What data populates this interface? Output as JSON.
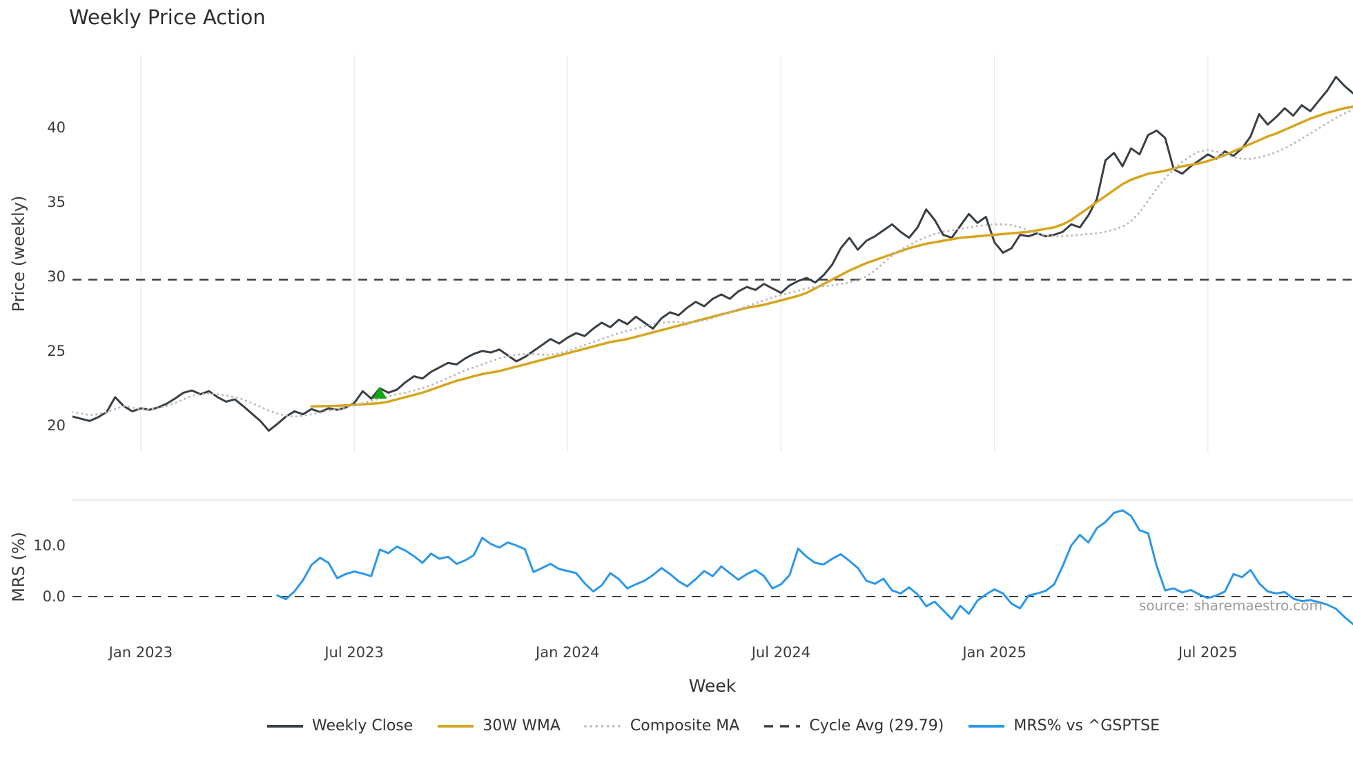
{
  "source_note": "source: sharemaestro.com",
  "chart_data": {
    "type": "line",
    "title": "Weekly Price Action",
    "xlabel": "Week",
    "x_unit": "decimal_year",
    "xlim": [
      2022.84,
      2025.84
    ],
    "grid": true,
    "grid_color": "#ececec",
    "panel_border_color": "#d9d9d9",
    "legend_position": "bottom-center",
    "xticks": [
      {
        "value": 2023.0,
        "label": "Jan 2023"
      },
      {
        "value": 2023.5,
        "label": "Jul 2023"
      },
      {
        "value": 2024.0,
        "label": "Jan 2024"
      },
      {
        "value": 2024.5,
        "label": "Jul 2024"
      },
      {
        "value": 2025.0,
        "label": "Jan 2025"
      },
      {
        "value": 2025.5,
        "label": "Jul 2025"
      }
    ],
    "panels": [
      {
        "id": "price",
        "ylabel": "Price (weekly)",
        "ylim": [
          18.19,
          44.86
        ],
        "yticks": [
          {
            "value": 20,
            "label": "20"
          },
          {
            "value": 25,
            "label": "25"
          },
          {
            "value": 30,
            "label": "30"
          },
          {
            "value": 35,
            "label": "35"
          },
          {
            "value": 40,
            "label": "40"
          }
        ],
        "grid_vertical": true,
        "hlines": [
          {
            "name": "Cycle Avg (29.79)",
            "value": 29.79,
            "color": "#3d3d3d",
            "style": "dashed",
            "width": 2.5
          }
        ],
        "markers": [
          {
            "type": "triangle-up",
            "x": 2023.56,
            "y": 22.15,
            "color": "#12a812",
            "size": 20,
            "meaning": "buy-signal"
          }
        ],
        "series": [
          {
            "name": "Weekly Close",
            "color": "#383f45",
            "style": "solid",
            "width": 3,
            "x0": 2022.84,
            "dx": 0.02,
            "values": [
              20.6,
              20.45,
              20.3,
              20.55,
              20.9,
              21.9,
              21.3,
              20.95,
              21.15,
              21.05,
              21.2,
              21.45,
              21.8,
              22.2,
              22.35,
              22.1,
              22.3,
              21.9,
              21.6,
              21.75,
              21.3,
              20.8,
              20.3,
              19.65,
              20.1,
              20.6,
              20.95,
              20.75,
              21.1,
              20.9,
              21.15,
              21.05,
              21.2,
              21.5,
              22.3,
              21.8,
              22.5,
              22.2,
              22.4,
              22.9,
              23.3,
              23.15,
              23.6,
              23.9,
              24.2,
              24.1,
              24.5,
              24.8,
              25.0,
              24.9,
              25.1,
              24.7,
              24.3,
              24.6,
              25.0,
              25.4,
              25.8,
              25.5,
              25.9,
              26.2,
              26.0,
              26.5,
              26.9,
              26.6,
              27.1,
              26.8,
              27.3,
              26.9,
              26.5,
              27.2,
              27.6,
              27.4,
              27.9,
              28.3,
              28.0,
              28.5,
              28.8,
              28.5,
              29.0,
              29.3,
              29.1,
              29.5,
              29.2,
              28.9,
              29.4,
              29.7,
              29.9,
              29.6,
              30.1,
              30.8,
              31.9,
              32.6,
              31.8,
              32.4,
              32.7,
              33.1,
              33.5,
              33.0,
              32.6,
              33.3,
              34.5,
              33.8,
              32.8,
              32.6,
              33.4,
              34.2,
              33.6,
              34.0,
              32.3,
              31.6,
              31.9,
              32.8,
              32.7,
              32.9,
              32.7,
              32.8,
              33.0,
              33.5,
              33.3,
              34.1,
              35.2,
              37.8,
              38.3,
              37.4,
              38.6,
              38.2,
              39.5,
              39.8,
              39.3,
              37.2,
              36.9,
              37.4,
              37.8,
              38.2,
              37.9,
              38.4,
              38.1,
              38.6,
              39.4,
              40.9,
              40.2,
              40.7,
              41.3,
              40.8,
              41.5,
              41.1,
              41.8,
              42.5,
              43.4,
              42.8,
              42.3,
              42.6,
              41.9,
              42.2,
              41.6
            ]
          },
          {
            "name": "30W WMA",
            "color": "#d6a51d",
            "style": "solid",
            "width": 3.5,
            "x0": 2023.4,
            "dx": 0.02,
            "values": [
              21.28,
              21.29,
              21.3,
              21.32,
              21.35,
              21.38,
              21.42,
              21.46,
              21.5,
              21.6,
              21.75,
              21.9,
              22.05,
              22.2,
              22.4,
              22.6,
              22.8,
              23.0,
              23.15,
              23.3,
              23.45,
              23.55,
              23.65,
              23.8,
              23.95,
              24.1,
              24.25,
              24.4,
              24.55,
              24.7,
              24.85,
              25.0,
              25.15,
              25.3,
              25.45,
              25.6,
              25.7,
              25.8,
              25.95,
              26.1,
              26.25,
              26.4,
              26.55,
              26.7,
              26.85,
              27.0,
              27.15,
              27.3,
              27.45,
              27.6,
              27.75,
              27.9,
              28.0,
              28.1,
              28.25,
              28.4,
              28.55,
              28.7,
              28.9,
              29.2,
              29.5,
              29.8,
              30.1,
              30.4,
              30.65,
              30.9,
              31.1,
              31.3,
              31.5,
              31.7,
              31.9,
              32.05,
              32.2,
              32.3,
              32.4,
              32.5,
              32.6,
              32.65,
              32.7,
              32.75,
              32.8,
              32.85,
              32.9,
              32.95,
              33.0,
              33.1,
              33.2,
              33.3,
              33.5,
              33.8,
              34.2,
              34.6,
              35.0,
              35.4,
              35.8,
              36.2,
              36.5,
              36.7,
              36.9,
              37.0,
              37.1,
              37.25,
              37.4,
              37.5,
              37.6,
              37.75,
              37.95,
              38.15,
              38.4,
              38.65,
              38.9,
              39.15,
              39.4,
              39.6,
              39.85,
              40.1,
              40.35,
              40.6,
              40.8,
              41.0,
              41.15,
              41.3,
              41.4,
              41.5,
              41.6,
              41.7,
              41.75
            ]
          },
          {
            "name": "Composite MA",
            "color": "#b8b8b8",
            "style": "dotted",
            "width": 3,
            "x0": 2022.84,
            "dx": 0.02,
            "values": [
              20.9,
              20.8,
              20.7,
              20.75,
              20.9,
              21.1,
              21.3,
              21.2,
              21.1,
              21.1,
              21.15,
              21.3,
              21.5,
              21.75,
              22.0,
              22.1,
              22.15,
              22.1,
              22.0,
              21.9,
              21.75,
              21.5,
              21.25,
              21.0,
              20.8,
              20.65,
              20.6,
              20.65,
              20.75,
              20.85,
              21.0,
              21.1,
              21.2,
              21.35,
              21.5,
              21.65,
              21.8,
              21.95,
              22.1,
              22.2,
              22.35,
              22.5,
              22.7,
              22.95,
              23.2,
              23.45,
              23.7,
              23.9,
              24.1,
              24.3,
              24.5,
              24.65,
              24.75,
              24.8,
              24.8,
              24.75,
              24.75,
              24.85,
              25.0,
              25.2,
              25.4,
              25.6,
              25.8,
              26.0,
              26.2,
              26.35,
              26.5,
              26.65,
              26.8,
              26.9,
              26.95,
              26.95,
              26.9,
              26.95,
              27.05,
              27.2,
              27.4,
              27.6,
              27.8,
              28.0,
              28.2,
              28.4,
              28.6,
              28.75,
              28.9,
              29.05,
              29.2,
              29.3,
              29.35,
              29.4,
              29.5,
              29.6,
              29.75,
              30.0,
              30.4,
              30.9,
              31.4,
              31.8,
              32.1,
              32.4,
              32.65,
              32.85,
              33.0,
              33.1,
              33.2,
              33.3,
              33.4,
              33.45,
              33.5,
              33.5,
              33.45,
              33.3,
              33.1,
              32.9,
              32.75,
              32.7,
              32.7,
              32.75,
              32.8,
              32.85,
              32.9,
              33.0,
              33.15,
              33.35,
              33.7,
              34.3,
              35.1,
              35.9,
              36.6,
              37.2,
              37.7,
              38.1,
              38.4,
              38.5,
              38.4,
              38.2,
              38.0,
              37.9,
              37.9,
              38.0,
              38.15,
              38.35,
              38.6,
              38.9,
              39.25,
              39.6,
              39.95,
              40.3,
              40.65,
              40.95,
              41.2,
              41.45,
              41.65,
              41.8,
              41.9
            ]
          }
        ]
      },
      {
        "id": "mrs",
        "ylabel": "MRS (%)",
        "ylim": [
          -7.3,
          18.92
        ],
        "yticks": [
          {
            "value": 0,
            "label": "0.0"
          },
          {
            "value": 10,
            "label": "10.0"
          }
        ],
        "grid_vertical": false,
        "top_border": true,
        "hlines": [
          {
            "name": "Zero line",
            "value": 0.0,
            "color": "#3d3d3d",
            "style": "dashed",
            "width": 2
          }
        ],
        "markers": [],
        "series": [
          {
            "name": "MRS% vs ^GSPTSE",
            "color": "#2b97ea",
            "style": "solid",
            "width": 3,
            "x0": 2023.32,
            "dx": 0.02,
            "values": [
              0.2,
              -0.5,
              1.0,
              3.2,
              6.2,
              7.6,
              6.6,
              3.6,
              4.4,
              4.9,
              4.5,
              4.0,
              9.2,
              8.5,
              9.8,
              9.0,
              7.9,
              6.6,
              8.4,
              7.4,
              7.8,
              6.4,
              7.1,
              8.1,
              11.5,
              10.3,
              9.6,
              10.6,
              10.0,
              9.3,
              4.8,
              5.6,
              6.4,
              5.4,
              5.0,
              4.6,
              2.6,
              1.0,
              2.2,
              4.6,
              3.4,
              1.6,
              2.4,
              3.1,
              4.2,
              5.6,
              4.4,
              3.0,
              2.0,
              3.4,
              5.0,
              4.0,
              5.9,
              4.6,
              3.3,
              4.4,
              5.2,
              4.0,
              1.6,
              2.4,
              4.2,
              9.4,
              7.8,
              6.6,
              6.3,
              7.4,
              8.3,
              7.0,
              5.6,
              3.1,
              2.5,
              3.5,
              1.2,
              0.6,
              1.8,
              0.4,
              -1.9,
              -1.0,
              -2.7,
              -4.4,
              -1.8,
              -3.4,
              -0.8,
              0.4,
              1.4,
              0.6,
              -1.4,
              -2.3,
              0.2,
              0.6,
              1.1,
              2.4,
              6.0,
              10.0,
              12.1,
              10.6,
              13.4,
              14.6,
              16.4,
              16.9,
              15.8,
              13.0,
              12.4,
              6.0,
              1.2,
              1.6,
              0.8,
              1.3,
              0.4,
              -0.3,
              0.2,
              1.0,
              4.4,
              3.8,
              5.2,
              2.6,
              1.0,
              0.6,
              0.9,
              -0.4,
              -0.9,
              -0.7,
              -1.1,
              -1.6,
              -2.4,
              -4.0,
              -5.4,
              -5.0,
              -5.8,
              -6.6,
              -7.0
            ]
          }
        ],
        "annotation": "source: sharemaestro.com"
      }
    ],
    "legend": [
      {
        "label": "Weekly Close",
        "color": "#383f45",
        "style": "solid"
      },
      {
        "label": "30W WMA",
        "color": "#d6a51d",
        "style": "solid"
      },
      {
        "label": "Composite MA",
        "color": "#b8b8b8",
        "style": "dotted"
      },
      {
        "label": "Cycle Avg (29.79)",
        "color": "#3d3d3d",
        "style": "dashed"
      },
      {
        "label": "MRS% vs ^GSPTSE",
        "color": "#2b97ea",
        "style": "solid"
      }
    ]
  }
}
